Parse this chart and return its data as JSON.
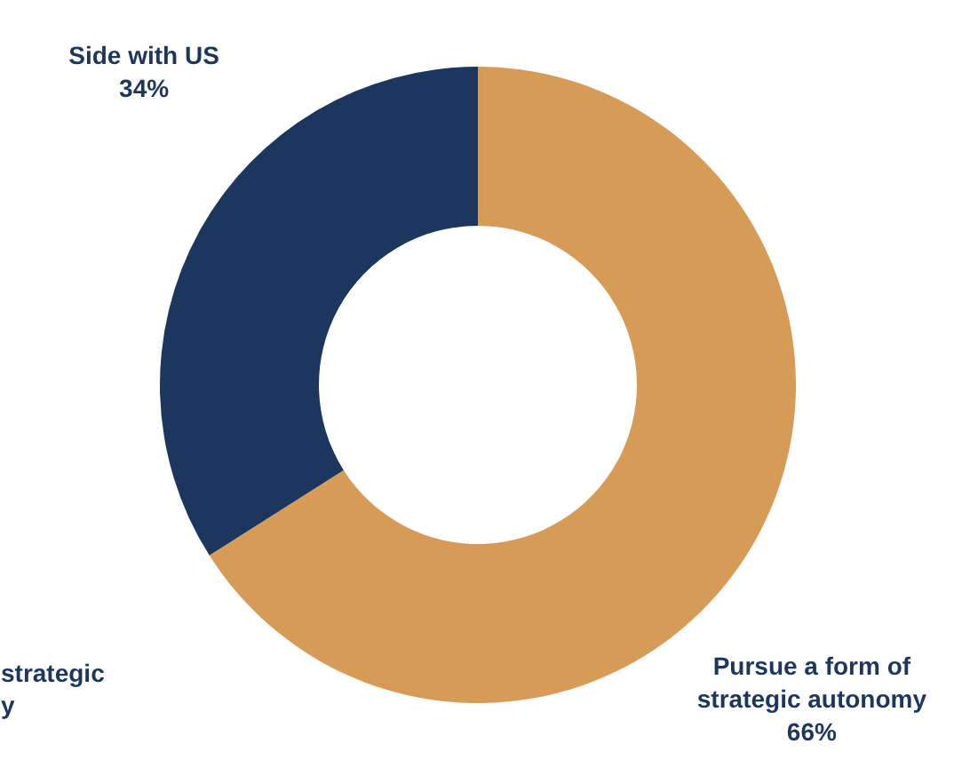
{
  "chart_data": {
    "type": "donut",
    "categories": [
      "Side with US",
      "Pursue a form of strategic autonomy"
    ],
    "values": [
      34,
      66
    ],
    "value_labels": [
      "34%",
      "66%"
    ],
    "colors": [
      "#1c365e",
      "#d79b58"
    ],
    "annotations": [
      "strategic\ny"
    ]
  }
}
